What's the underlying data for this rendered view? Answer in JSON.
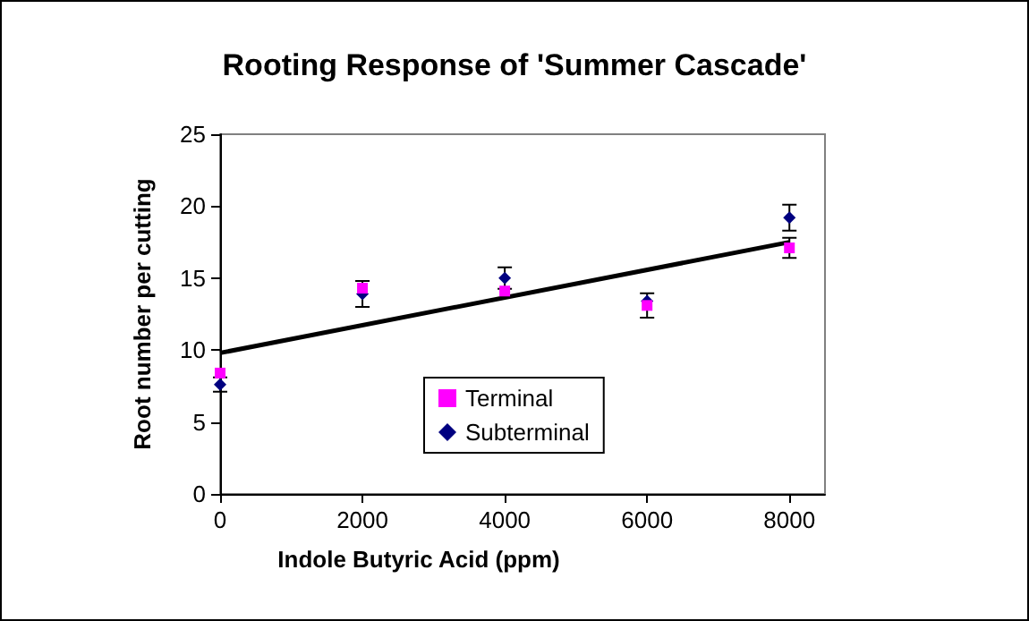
{
  "chart_data": {
    "type": "scatter",
    "title": "Rooting Response of 'Summer Cascade'",
    "xlabel": "Indole Butyric Acid (ppm)",
    "ylabel": "Root number per cutting",
    "x": [
      0,
      2000,
      4000,
      6000,
      8000
    ],
    "series": [
      {
        "name": "Terminal",
        "color": "#ff00ff",
        "marker": "square",
        "values": [
          8.4,
          14.3,
          14.1,
          13.1,
          17.1
        ],
        "errors": [
          null,
          null,
          null,
          0.85,
          0.7
        ]
      },
      {
        "name": "Subterminal",
        "color": "#000080",
        "marker": "diamond",
        "values": [
          7.6,
          13.9,
          15.0,
          13.4,
          19.2
        ],
        "errors": [
          0.5,
          0.9,
          0.75,
          null,
          0.9
        ]
      },
      {
        "type": "line",
        "color": "#000000",
        "marker": "none",
        "line_style": "solid",
        "x": [
          0,
          8000
        ],
        "values": [
          9.8,
          17.5
        ]
      }
    ],
    "xlim": [
      0,
      8500
    ],
    "xticks": [
      0,
      2000,
      4000,
      6000,
      8000
    ],
    "ylim": [
      0,
      25
    ],
    "yticks": [
      0,
      5,
      10,
      15,
      20,
      25
    ],
    "grid": false,
    "legend": "bottom"
  }
}
